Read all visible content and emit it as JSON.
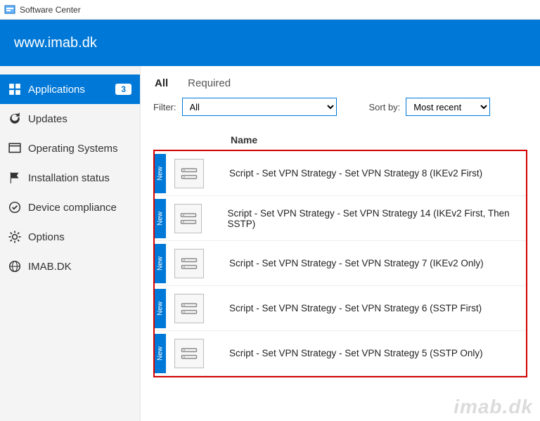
{
  "window": {
    "title": "Software Center"
  },
  "brand": {
    "text": "www.imab.dk",
    "bg": "#0078d7",
    "fg": "#ffffff"
  },
  "sidebar": {
    "items": [
      {
        "label": "Applications",
        "icon": "apps",
        "selected": true,
        "badge": "3"
      },
      {
        "label": "Updates",
        "icon": "refresh",
        "selected": false
      },
      {
        "label": "Operating Systems",
        "icon": "window",
        "selected": false
      },
      {
        "label": "Installation status",
        "icon": "flag",
        "selected": false
      },
      {
        "label": "Device compliance",
        "icon": "check",
        "selected": false
      },
      {
        "label": "Options",
        "icon": "gear",
        "selected": false
      },
      {
        "label": "IMAB.DK",
        "icon": "globe",
        "selected": false
      }
    ]
  },
  "tabs": {
    "items": [
      {
        "label": "All",
        "active": true
      },
      {
        "label": "Required",
        "active": false
      }
    ]
  },
  "filters": {
    "filter_label": "Filter:",
    "filter_value": "All",
    "sort_label": "Sort by:",
    "sort_value": "Most recent"
  },
  "list": {
    "header": "Name",
    "new_tag": "New",
    "rows": [
      {
        "name": "Script - Set VPN Strategy - Set VPN Strategy 8 (IKEv2 First)"
      },
      {
        "name": "Script - Set VPN Strategy - Set VPN Strategy 14 (IKEv2 First, Then SSTP)"
      },
      {
        "name": "Script - Set VPN Strategy - Set VPN Strategy 7 (IKEv2 Only)"
      },
      {
        "name": "Script - Set VPN Strategy - Set VPN Strategy 6 (SSTP First)"
      },
      {
        "name": "Script - Set VPN Strategy - Set VPN Strategy 5 (SSTP Only)"
      }
    ],
    "highlight_border": "#d40000"
  },
  "watermark": {
    "text": "imab.dk"
  },
  "colors": {
    "accent": "#0078d7",
    "sidebar_bg": "#f4f4f4",
    "row_border": "#eeeeee"
  }
}
